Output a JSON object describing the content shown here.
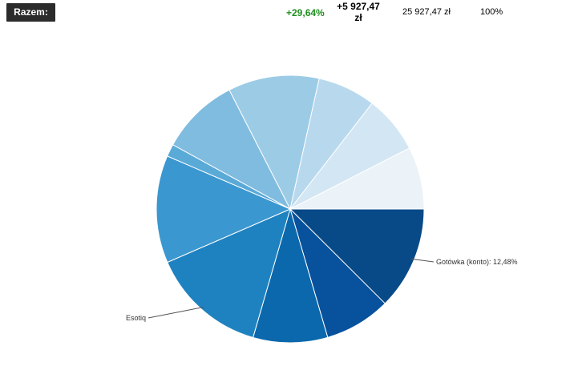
{
  "summary": {
    "total_label": "Razem:",
    "change_percent": "+29,64%",
    "change_amount_line1": "+5 927,47",
    "change_amount_line2": "zł",
    "total_value": "25 927,47 zł",
    "total_percent": "100%"
  },
  "chart_data": {
    "type": "pie",
    "title": "",
    "slices": [
      {
        "label": "Gotówka (konto): 12,48%",
        "value": 12.48,
        "color": "#084a87"
      },
      {
        "label": "",
        "value": 8.0,
        "color": "#08519c"
      },
      {
        "label": "",
        "value": 9.0,
        "color": "#0b68ac"
      },
      {
        "label": "Esotiq",
        "value": 14.0,
        "color": "#1f82c0"
      },
      {
        "label": "",
        "value": 13.0,
        "color": "#3b97cf"
      },
      {
        "label": "",
        "value": 1.5,
        "color": "#5aaad8"
      },
      {
        "label": "",
        "value": 9.5,
        "color": "#80bce0"
      },
      {
        "label": "",
        "value": 11.0,
        "color": "#9ccbe6"
      },
      {
        "label": "",
        "value": 7.0,
        "color": "#b8d9ed"
      },
      {
        "label": "",
        "value": 7.0,
        "color": "#d3e6f3"
      },
      {
        "label": "",
        "value": 7.52,
        "color": "#ebf3f8"
      }
    ],
    "start_angle_deg": 0,
    "direction": "clockwise"
  }
}
